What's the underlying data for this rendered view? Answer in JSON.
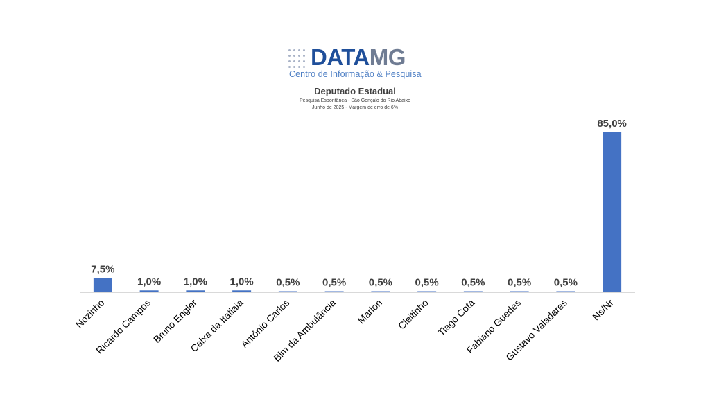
{
  "logo": {
    "word_left": "DATA",
    "word_right": "MG",
    "tagline": "Centro de Informação & Pesquisa"
  },
  "chart_data": {
    "type": "bar",
    "title": "Deputado  Estadual",
    "subtitle_lines": [
      "Pesquisa Espontânea - São Gonçalo do Rio Abaixo",
      "Junho de 2025 - Margem de erro de 6%"
    ],
    "categories": [
      "Nozinho",
      "Ricardo Campos",
      "Bruno Engler",
      "Caixa da Itatiaia",
      "Antônio Carlos",
      "Bim da Ambulância",
      "Marlon",
      "Cleitinho",
      "Tiago Cota",
      "Fabiano Guedes",
      "Gustavo Valadares",
      "Ns/Nr"
    ],
    "values": [
      7.5,
      1.0,
      1.0,
      1.0,
      0.5,
      0.5,
      0.5,
      0.5,
      0.5,
      0.5,
      0.5,
      85.0
    ],
    "data_labels": [
      "7,5%",
      "1,0%",
      "1,0%",
      "1,0%",
      "0,5%",
      "0,5%",
      "0,5%",
      "0,5%",
      "0,5%",
      "0,5%",
      "0,5%",
      "85,0%"
    ],
    "ylim": [
      0,
      85
    ],
    "grid": false,
    "bar_color": "#4472c4"
  }
}
